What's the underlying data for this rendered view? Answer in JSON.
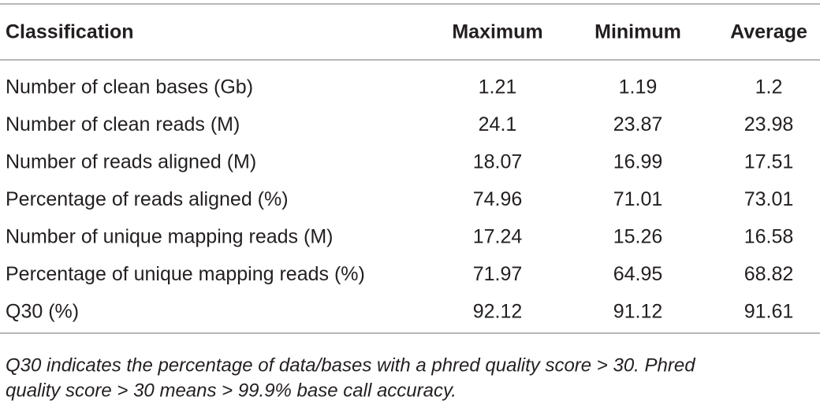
{
  "table": {
    "header": [
      "Classification",
      "Maximum",
      "Minimum",
      "Average"
    ],
    "rows": [
      [
        "Number of clean bases (Gb)",
        1.21,
        1.19,
        1.2
      ],
      [
        "Number of clean reads (M)",
        24.1,
        23.87,
        23.98
      ],
      [
        "Number of reads aligned (M)",
        18.07,
        16.99,
        17.51
      ],
      [
        "Percentage of reads aligned (%)",
        74.96,
        71.01,
        73.01
      ],
      [
        "Number of unique mapping reads (M)",
        17.24,
        15.26,
        16.58
      ],
      [
        "Percentage of unique mapping reads (%)",
        71.97,
        64.95,
        68.82
      ],
      [
        "Q30 (%)",
        92.12,
        91.12,
        91.61
      ]
    ],
    "note": [
      "Q30 indicates the percentage of data/bases with a phred quality score > 30. Phred",
      "quality score > 30 means > 99.9% base call accuracy."
    ]
  }
}
